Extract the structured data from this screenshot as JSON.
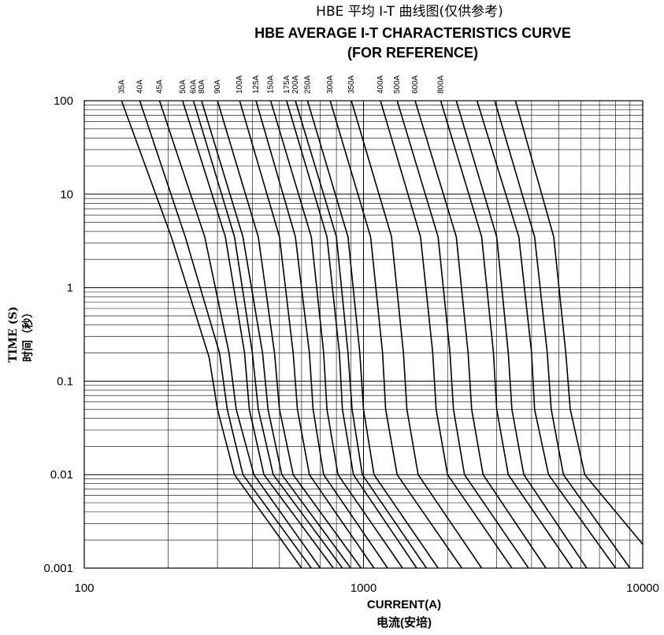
{
  "chart_data": {
    "type": "line",
    "title": "HBE 平均 I-T 曲线图(仅供参考)",
    "subtitle": "HBE AVERAGE I-T CHARACTERISTICS CURVE",
    "subtitle2": "(FOR REFERENCE)",
    "xlabel": "CURRENT(A)",
    "xlabel_cn": "电流(安培)",
    "ylabel": "TIME (S)",
    "ylabel_cn": "时间（秒）",
    "x_scale": "log",
    "y_scale": "log",
    "xlim": [
      100,
      10000
    ],
    "ylim": [
      0.001,
      100
    ],
    "x_ticks": [
      "100",
      "1000",
      "10000"
    ],
    "y_ticks": [
      "100",
      "10",
      "1",
      "0.1",
      "0.01",
      "0.001"
    ],
    "grid": true,
    "series": [
      {
        "name": "35A",
        "points": [
          [
            136,
            100
          ],
          [
            205,
            3.5
          ],
          [
            280,
            0.18
          ],
          [
            300,
            0.05
          ],
          [
            345,
            0.01
          ],
          [
            600,
            0.001
          ]
        ]
      },
      {
        "name": "40A",
        "points": [
          [
            158,
            100
          ],
          [
            230,
            3.5
          ],
          [
            305,
            0.2
          ],
          [
            325,
            0.05
          ],
          [
            370,
            0.01
          ],
          [
            650,
            0.001
          ]
        ]
      },
      {
        "name": "45A",
        "points": [
          [
            186,
            100
          ],
          [
            270,
            3.5
          ],
          [
            330,
            0.2
          ],
          [
            350,
            0.05
          ],
          [
            405,
            0.01
          ],
          [
            700,
            0.001
          ]
        ]
      },
      {
        "name": "50A",
        "points": [
          [
            225,
            100
          ],
          [
            320,
            3.5
          ],
          [
            375,
            0.2
          ],
          [
            390,
            0.05
          ],
          [
            440,
            0.01
          ],
          [
            780,
            0.001
          ]
        ]
      },
      {
        "name": "60A",
        "points": [
          [
            246,
            100
          ],
          [
            345,
            3.5
          ],
          [
            400,
            0.2
          ],
          [
            420,
            0.05
          ],
          [
            475,
            0.01
          ],
          [
            840,
            0.001
          ]
        ]
      },
      {
        "name": "80A",
        "points": [
          [
            263,
            100
          ],
          [
            370,
            3.5
          ],
          [
            435,
            0.2
          ],
          [
            455,
            0.05
          ],
          [
            510,
            0.01
          ],
          [
            900,
            0.001
          ]
        ]
      },
      {
        "name": "90A",
        "points": [
          [
            300,
            100
          ],
          [
            420,
            3.5
          ],
          [
            480,
            0.2
          ],
          [
            500,
            0.05
          ],
          [
            560,
            0.01
          ],
          [
            980,
            0.001
          ]
        ]
      },
      {
        "name": "100A",
        "points": [
          [
            360,
            100
          ],
          [
            500,
            3.5
          ],
          [
            560,
            0.2
          ],
          [
            580,
            0.05
          ],
          [
            640,
            0.01
          ],
          [
            1090,
            0.001
          ]
        ]
      },
      {
        "name": "125A",
        "points": [
          [
            412,
            100
          ],
          [
            570,
            3.5
          ],
          [
            640,
            0.2
          ],
          [
            660,
            0.05
          ],
          [
            720,
            0.01
          ],
          [
            1220,
            0.001
          ]
        ]
      },
      {
        "name": "150A",
        "points": [
          [
            465,
            100
          ],
          [
            650,
            3.5
          ],
          [
            720,
            0.2
          ],
          [
            740,
            0.05
          ],
          [
            810,
            0.01
          ],
          [
            1380,
            0.001
          ]
        ]
      },
      {
        "name": "175A",
        "points": [
          [
            530,
            100
          ],
          [
            740,
            3.5
          ],
          [
            820,
            0.2
          ],
          [
            840,
            0.05
          ],
          [
            920,
            0.01
          ],
          [
            1550,
            0.001
          ]
        ]
      },
      {
        "name": "200A",
        "points": [
          [
            570,
            100
          ],
          [
            800,
            3.5
          ],
          [
            880,
            0.2
          ],
          [
            910,
            0.05
          ],
          [
            990,
            0.01
          ],
          [
            1680,
            0.001
          ]
        ]
      },
      {
        "name": "250A",
        "points": [
          [
            630,
            100
          ],
          [
            880,
            3.5
          ],
          [
            970,
            0.2
          ],
          [
            1000,
            0.05
          ],
          [
            1090,
            0.01
          ],
          [
            1850,
            0.001
          ]
        ]
      },
      {
        "name": "300A",
        "points": [
          [
            760,
            100
          ],
          [
            1060,
            3.5
          ],
          [
            1170,
            0.2
          ],
          [
            1200,
            0.05
          ],
          [
            1320,
            0.01
          ],
          [
            2250,
            0.001
          ]
        ]
      },
      {
        "name": "350A",
        "points": [
          [
            905,
            100
          ],
          [
            1260,
            3.5
          ],
          [
            1390,
            0.2
          ],
          [
            1430,
            0.05
          ],
          [
            1570,
            0.01
          ],
          [
            2650,
            0.001
          ]
        ]
      },
      {
        "name": "400A",
        "points": [
          [
            1150,
            100
          ],
          [
            1600,
            3.5
          ],
          [
            1770,
            0.2
          ],
          [
            1820,
            0.05
          ],
          [
            2000,
            0.01
          ],
          [
            3400,
            0.001
          ]
        ]
      },
      {
        "name": "500A",
        "points": [
          [
            1320,
            100
          ],
          [
            1850,
            3.5
          ],
          [
            2040,
            0.2
          ],
          [
            2100,
            0.05
          ],
          [
            2300,
            0.01
          ],
          [
            3900,
            0.001
          ]
        ]
      },
      {
        "name": "600A",
        "points": [
          [
            1530,
            100
          ],
          [
            2150,
            3.5
          ],
          [
            2370,
            0.2
          ],
          [
            2440,
            0.05
          ],
          [
            2680,
            0.01
          ],
          [
            4500,
            0.001
          ]
        ]
      },
      {
        "name": "800A",
        "points": [
          [
            1890,
            100
          ],
          [
            2650,
            3.5
          ],
          [
            2920,
            0.2
          ],
          [
            3000,
            0.05
          ],
          [
            3300,
            0.01
          ],
          [
            5600,
            0.001
          ]
        ]
      }
    ],
    "series_unlabeled": [
      {
        "points": [
          [
            2150,
            100
          ],
          [
            3000,
            3.5
          ],
          [
            3300,
            0.2
          ],
          [
            3400,
            0.05
          ],
          [
            3750,
            0.01
          ],
          [
            6300,
            0.001
          ]
        ]
      },
      {
        "points": [
          [
            2550,
            100
          ],
          [
            3600,
            3.5
          ],
          [
            4000,
            0.2
          ],
          [
            4100,
            0.05
          ],
          [
            4600,
            0.01
          ],
          [
            8000,
            0.001
          ]
        ]
      },
      {
        "points": [
          [
            2950,
            100
          ],
          [
            4100,
            3.5
          ],
          [
            4550,
            0.2
          ],
          [
            4700,
            0.05
          ],
          [
            5200,
            0.01
          ],
          [
            9000,
            0.001
          ]
        ]
      },
      {
        "points": [
          [
            3500,
            100
          ],
          [
            4800,
            3.5
          ],
          [
            5300,
            0.2
          ],
          [
            5500,
            0.05
          ],
          [
            6200,
            0.01
          ],
          [
            10000,
            0.0018
          ]
        ]
      }
    ]
  }
}
